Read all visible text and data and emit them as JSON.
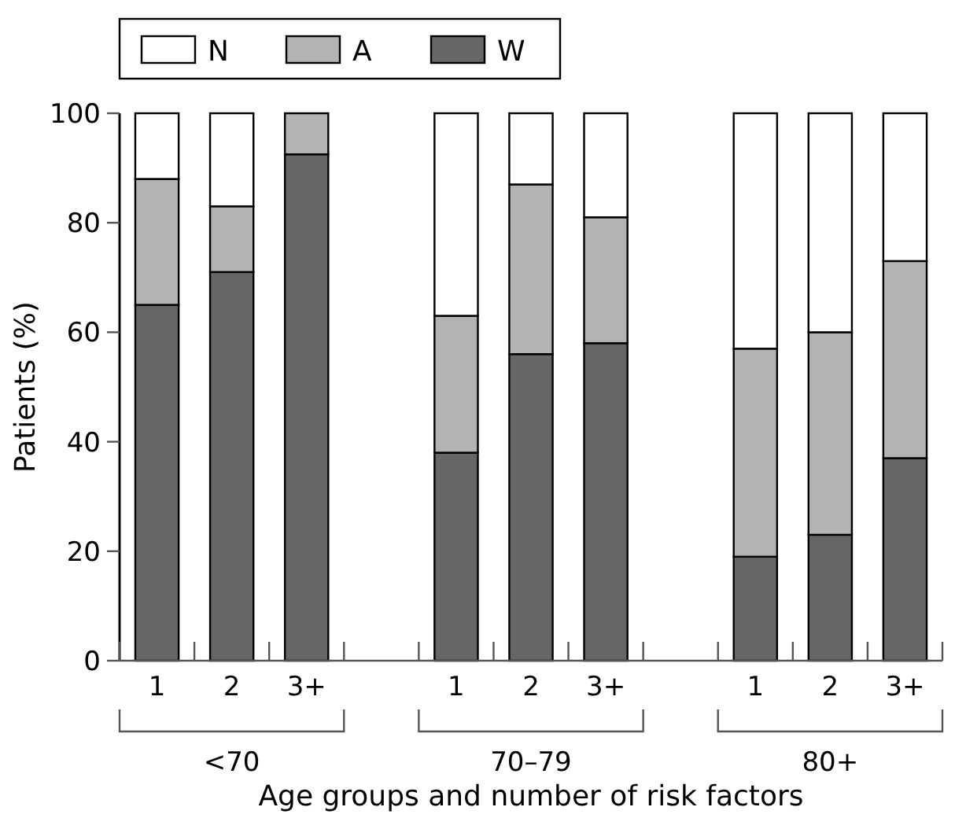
{
  "chart_data": {
    "type": "bar",
    "stacked": true,
    "categories": [
      "1",
      "2",
      "3+",
      null,
      "1",
      "2",
      "3+",
      null,
      "1",
      "2",
      "3+"
    ],
    "series": [
      {
        "name": "W",
        "color": "#666666",
        "values": [
          65,
          71,
          92.5,
          null,
          38,
          56,
          58,
          null,
          19,
          23,
          37
        ]
      },
      {
        "name": "A",
        "color": "#b3b3b3",
        "values": [
          23,
          12,
          7.5,
          null,
          25,
          31,
          23,
          null,
          38,
          37,
          36
        ]
      },
      {
        "name": "N",
        "color": "#ffffff",
        "values": [
          12,
          17,
          0,
          null,
          37,
          13,
          19,
          null,
          43,
          40,
          27
        ]
      }
    ],
    "ylim": [
      0,
      100
    ],
    "yticks": [
      0,
      20,
      40,
      60,
      80,
      100
    ],
    "ylabel": "Patients (%)",
    "xlabel": "Age groups and number of risk factors",
    "annotations": [
      "<70",
      "70–79",
      "80+"
    ],
    "legend": "top left",
    "grid": false
  }
}
